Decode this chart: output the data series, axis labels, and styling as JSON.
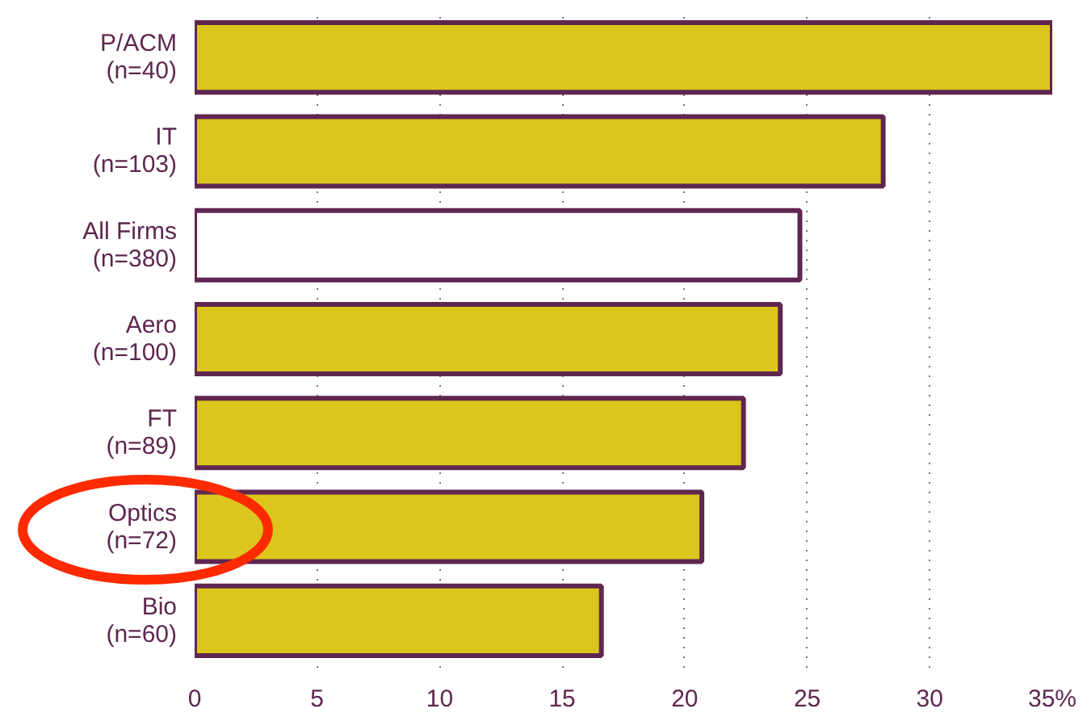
{
  "chart_data": {
    "type": "bar",
    "orientation": "horizontal",
    "categories": [
      "P/ACM\n(n=40)",
      "IT\n(n=103)",
      "All Firms\n(n=380)",
      "Aero\n(n=100)",
      "FT\n(n=89)",
      "Optics\n(n=72)",
      "Bio\n(n=60)"
    ],
    "values": [
      35,
      28.1,
      24.7,
      23.9,
      22.4,
      20.7,
      16.6
    ],
    "colors": [
      "#dcc51c",
      "#dcc51c",
      "#ffffff",
      "#dcc51c",
      "#dcc51c",
      "#dcc51c",
      "#dcc51c"
    ],
    "xlim": [
      0,
      35
    ],
    "xticks": [
      0,
      5,
      10,
      15,
      20,
      25,
      30,
      {
        "value": 35,
        "label": "35%"
      }
    ],
    "grid": "x"
  }
}
